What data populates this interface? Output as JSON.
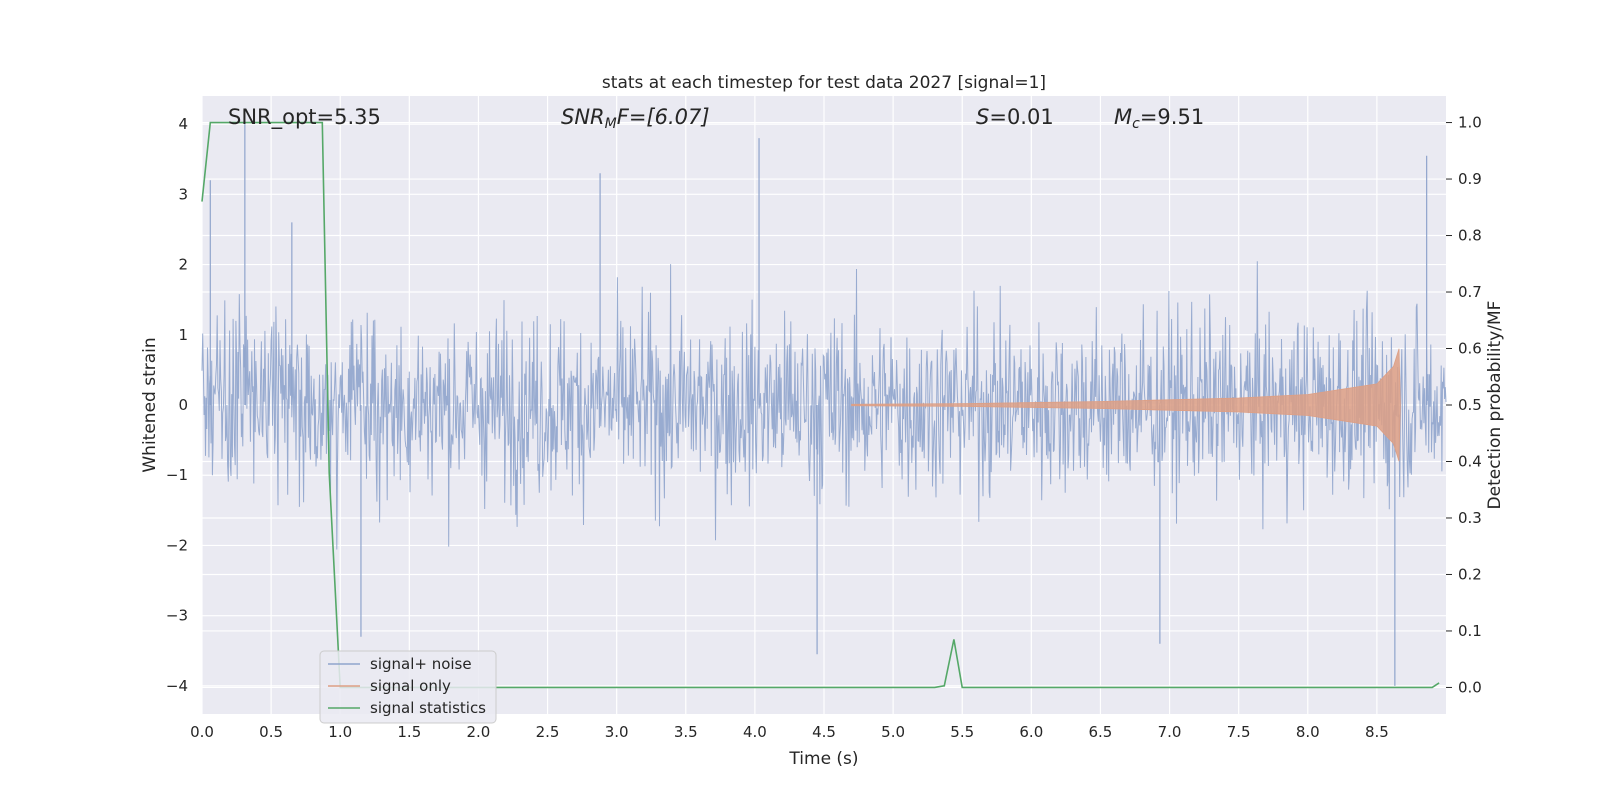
{
  "chart_data": {
    "type": "line",
    "title": "stats at each timestep for test data 2027 [signal=1]",
    "xlabel": "Time (s)",
    "ylabel": "Whitened strain",
    "ylabel_right": "Detection probability/MF",
    "xlim": [
      0.0,
      9.0
    ],
    "ylim": [
      -4.4,
      4.4
    ],
    "ylim_right": [
      -0.047,
      1.047
    ],
    "x_ticks": [
      "0.0",
      "0.5",
      "1.0",
      "1.5",
      "2.0",
      "2.5",
      "3.0",
      "3.5",
      "4.0",
      "4.5",
      "5.0",
      "5.5",
      "6.0",
      "6.5",
      "7.0",
      "7.5",
      "8.0",
      "8.5"
    ],
    "y_ticks": [
      "4",
      "3",
      "2",
      "1",
      "0",
      "−1",
      "−2",
      "−3",
      "−4"
    ],
    "y_ticks_right": [
      "1.0",
      "0.9",
      "0.8",
      "0.7",
      "0.6",
      "0.5",
      "0.4",
      "0.3",
      "0.2",
      "0.1",
      "0.0"
    ],
    "grid": true,
    "annotations": {
      "snr_opt": "SNR_opt=5.35",
      "snr_mf_main": "SNR",
      "snr_mf_sub": "M",
      "snr_mf_rest": "F=[6.07]",
      "s_main": "S",
      "s_rest": "=0.01",
      "mc_main": "M",
      "mc_sub": "c",
      "mc_rest": "=9.51"
    },
    "legend": {
      "placement": "lower-left",
      "entries": [
        "signal+ noise",
        "signal only",
        "signal statistics"
      ]
    },
    "series": [
      {
        "name": "signal+ noise",
        "color": "#8fa4cc",
        "description_values": {
          "x_range": [
            0.0,
            9.0
          ],
          "typical_envelope": [
            -2.2,
            2.2
          ],
          "max": 4.0,
          "min": -4.0
        }
      },
      {
        "name": "signal only",
        "color": "#dd9f85",
        "x": [
          4.7,
          5.5,
          6.5,
          7.5,
          8.0,
          8.5,
          8.62,
          8.66,
          8.67
        ],
        "amplitude": [
          0.01,
          0.02,
          0.05,
          0.1,
          0.15,
          0.3,
          0.55,
          0.8,
          0.0
        ]
      },
      {
        "name": "signal statistics",
        "color": "#55a868",
        "x": [
          0.0,
          0.06,
          0.12,
          0.3,
          0.6,
          0.87,
          0.92,
          1.0,
          1.2,
          5.3,
          5.37,
          5.44,
          5.5,
          8.9,
          8.95
        ],
        "y": [
          0.86,
          1.0,
          1.0,
          1.0,
          1.0,
          1.0,
          0.38,
          0.0,
          0.0,
          0.0,
          0.003,
          0.085,
          0.0,
          0.0,
          0.008
        ]
      }
    ]
  }
}
